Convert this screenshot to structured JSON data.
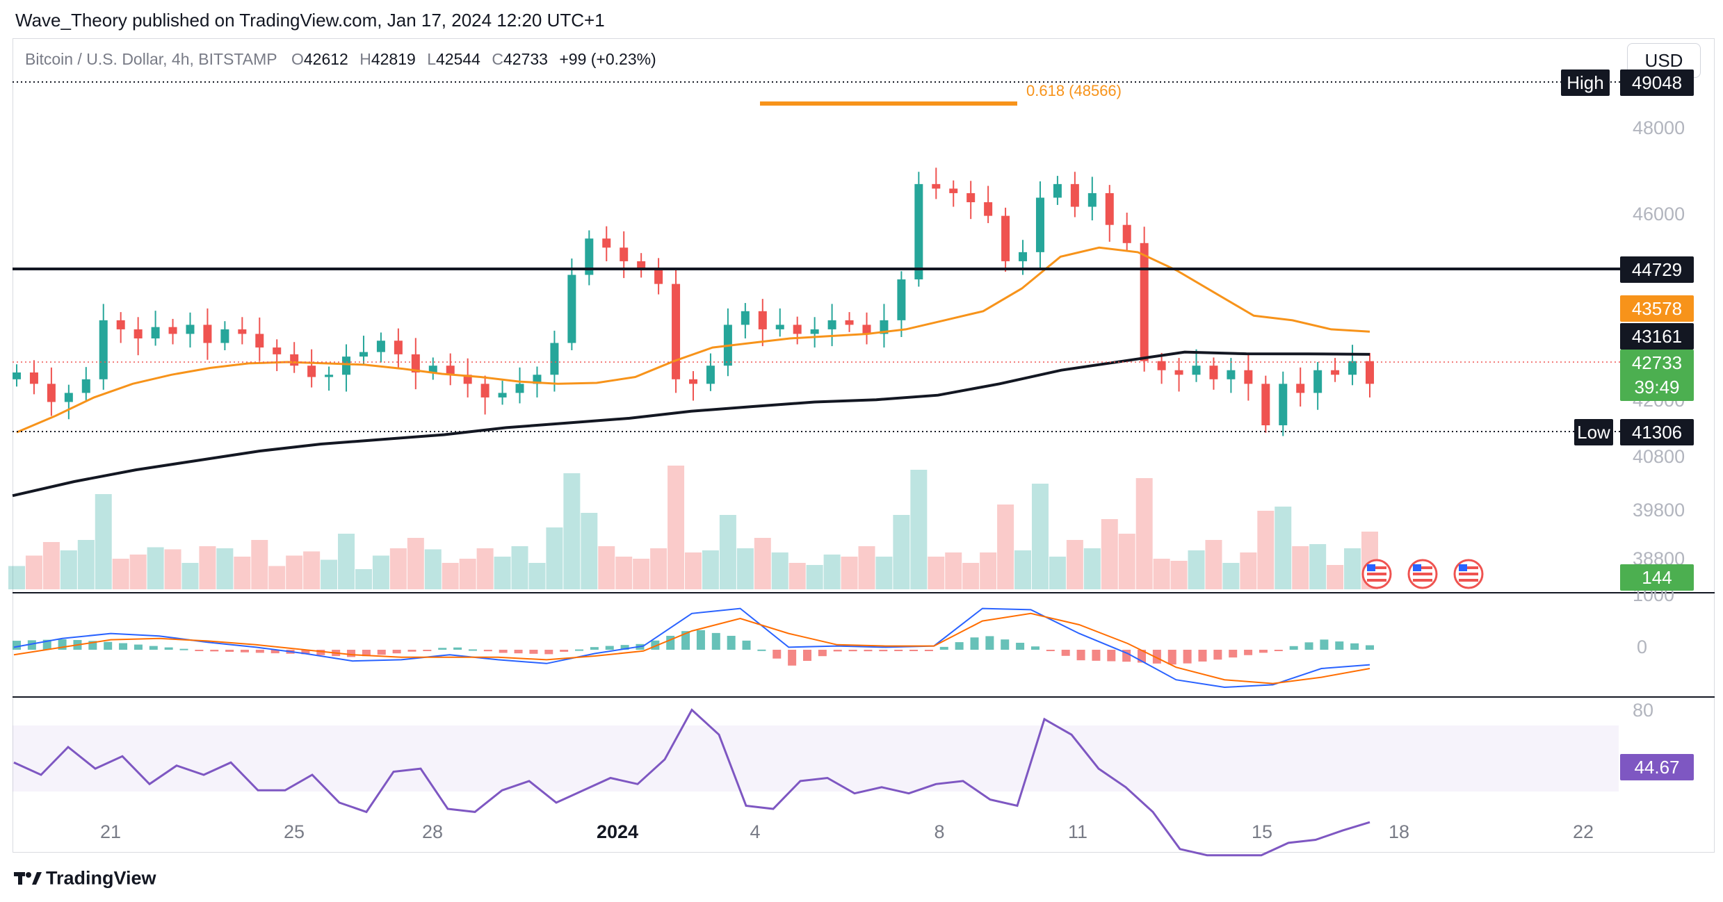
{
  "header": {
    "text": "Wave_Theory published on TradingView.com, Jan 17, 2024 12:20 UTC+1"
  },
  "legend": {
    "symbol": "Bitcoin / U.S. Dollar, 4h, BITSTAMP",
    "open_key": "O",
    "open": "42612",
    "high_key": "H",
    "high": "42819",
    "low_key": "L",
    "low": "42544",
    "close_key": "C",
    "close": "42733",
    "change": "+99 (+0.23%)"
  },
  "currency_button": "USD",
  "footer": {
    "brand": "TradingView",
    "logo_icon": "tradingview-logo-icon"
  },
  "colors": {
    "up": "#26a69a",
    "down": "#ef5350",
    "ema50": "#f7931a",
    "ema200": "#131722",
    "macd": "#2962ff",
    "signal": "#ff6d00",
    "rsi": "#7e57c2",
    "fib": "#f7931a"
  },
  "labels": {
    "high": "High",
    "high_value": "49048",
    "low": "Low",
    "low_value": "41306",
    "resistance": "44729",
    "ema50_value": "43578",
    "ema200_value": "43161",
    "last_price": "42733",
    "countdown": "39:49",
    "volume_value": "144",
    "rsi_value": "44.67",
    "fib_label": "0.618 (48566)"
  },
  "chart_data": [
    {
      "type": "candlestick",
      "title": "Bitcoin / U.S. Dollar, 4h, BITSTAMP",
      "x_ticks": [
        "21",
        "25",
        "28",
        "2024",
        "4",
        "8",
        "11",
        "15",
        "18",
        "22"
      ],
      "y_ticks": [
        48000,
        46000,
        42000,
        40800,
        39800,
        38800
      ],
      "ylim": [
        38600,
        49300
      ],
      "grid": false,
      "levels": {
        "resistance": 44729,
        "period_high": 49048,
        "period_low": 41306,
        "fib_0_618": 48566,
        "last": 42733
      },
      "series": [
        {
          "name": "BTCUSD 4h close",
          "values": [
            42750,
            42500,
            42100,
            42300,
            42600,
            43900,
            43700,
            43500,
            43750,
            43600,
            43800,
            43400,
            43700,
            43600,
            43300,
            43150,
            42900,
            42650,
            42700,
            43100,
            43200,
            43450,
            43150,
            42750,
            42900,
            42700,
            42500,
            42200,
            42300,
            42500,
            42700,
            43400,
            44900,
            45700,
            45500,
            45200,
            45000,
            44700,
            42600,
            42500,
            42900,
            43800,
            44100,
            43700,
            43800,
            43600,
            43700,
            43900,
            43800,
            43600,
            43900,
            44800,
            46900,
            46800,
            46700,
            46500,
            46200,
            45200,
            45400,
            46600,
            46900,
            46400,
            46700,
            46000,
            45600,
            43000,
            42800,
            42700,
            42900,
            42600,
            42800,
            42500,
            41600,
            42500,
            42300,
            42800,
            42700,
            43000,
            42500
          ]
        },
        {
          "name": "EMA 50",
          "values": [
            41450,
            41800,
            42200,
            42500,
            42700,
            42850,
            42950,
            42980,
            42950,
            42920,
            42830,
            42720,
            42650,
            42550,
            42500,
            42520,
            42650,
            43000,
            43300,
            43400,
            43500,
            43550,
            43600,
            43700,
            43900,
            44100,
            44600,
            45300,
            45500,
            45400,
            45000,
            44500,
            44000,
            43900,
            43700,
            43650
          ]
        },
        {
          "name": "EMA 200",
          "values": [
            40100,
            40400,
            40650,
            40850,
            41050,
            41200,
            41300,
            41400,
            41550,
            41650,
            41750,
            41900,
            42000,
            42100,
            42150,
            42250,
            42500,
            42800,
            43000,
            43200,
            43161,
            43160,
            43150
          ]
        }
      ]
    },
    {
      "type": "area",
      "title": "Volume",
      "last_value": 144
    },
    {
      "type": "line",
      "title": "MACD",
      "y_ticks": [
        0
      ],
      "series": [
        {
          "name": "MACD",
          "values": [
            0.2,
            0.9,
            1.3,
            1.1,
            0.6,
            0.2,
            -0.3,
            -0.9,
            -0.8,
            -0.4,
            -0.8,
            -1.1,
            -0.3,
            0.3,
            2.9,
            3.3,
            0.2,
            0.3,
            0.2,
            0.3,
            3.3,
            3.2,
            1.3,
            -0.3,
            -2.4,
            -3.0,
            -2.8,
            -1.5,
            -1.2
          ]
        },
        {
          "name": "Signal",
          "values": [
            -0.4,
            0.2,
            0.8,
            0.9,
            0.7,
            0.4,
            0.0,
            -0.4,
            -0.6,
            -0.6,
            -0.6,
            -0.8,
            -0.5,
            -0.1,
            1.5,
            2.5,
            1.3,
            0.4,
            0.3,
            0.3,
            2.3,
            2.9,
            2.0,
            0.5,
            -1.4,
            -2.4,
            -2.7,
            -2.2,
            -1.5
          ]
        }
      ]
    },
    {
      "type": "line",
      "title": "RSI",
      "y_ticks": [
        80
      ],
      "series": [
        {
          "name": "RSI",
          "values": [
            64,
            60,
            69,
            62,
            66,
            57,
            63,
            60,
            64,
            55,
            55,
            60,
            51,
            48,
            61,
            62,
            49,
            48,
            55,
            58,
            51,
            55,
            59,
            57,
            65,
            81,
            73,
            50,
            49,
            58,
            59,
            54,
            56,
            54,
            57,
            58,
            52,
            50,
            78,
            73,
            62,
            56,
            48,
            36,
            34,
            34,
            34,
            38,
            39,
            42,
            44.67
          ]
        }
      ]
    }
  ]
}
